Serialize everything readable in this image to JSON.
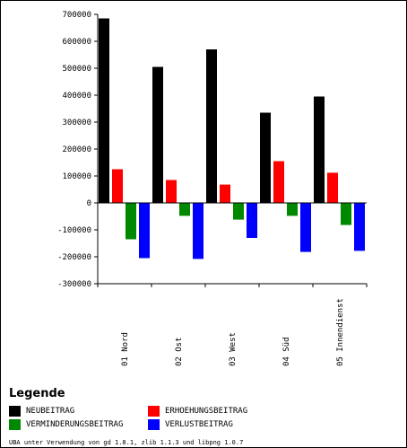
{
  "chart_data": {
    "type": "bar",
    "categories": [
      "01 Nord",
      "02 Ost",
      "03 West",
      "04 Süd",
      "05 Innendienst"
    ],
    "series": [
      {
        "name": "NEUBEITRAG",
        "color": "#000000",
        "values": [
          685000,
          505000,
          570000,
          335000,
          395000
        ]
      },
      {
        "name": "ERHOEHUNGSBEITRAG",
        "color": "#ff0000",
        "values": [
          125000,
          85000,
          68000,
          155000,
          112000
        ]
      },
      {
        "name": "VERMINDERUNGSBEITRAG",
        "color": "#008800",
        "values": [
          -135000,
          -48000,
          -62000,
          -48000,
          -82000
        ]
      },
      {
        "name": "VERLUSTBEITRAG",
        "color": "#0000ff",
        "values": [
          -205000,
          -208000,
          -130000,
          -182000,
          -178000
        ]
      }
    ],
    "ylim": [
      -300000,
      700000
    ],
    "yticks": [
      -300000,
      -200000,
      -100000,
      0,
      100000,
      200000,
      300000,
      400000,
      500000,
      600000,
      700000
    ],
    "legend_title": "Legende",
    "legend_position": "bottom"
  },
  "footer": "UBA unter Verwendung von gd 1.8.1, zlib 1.1.3 und libpng 1.0.7"
}
